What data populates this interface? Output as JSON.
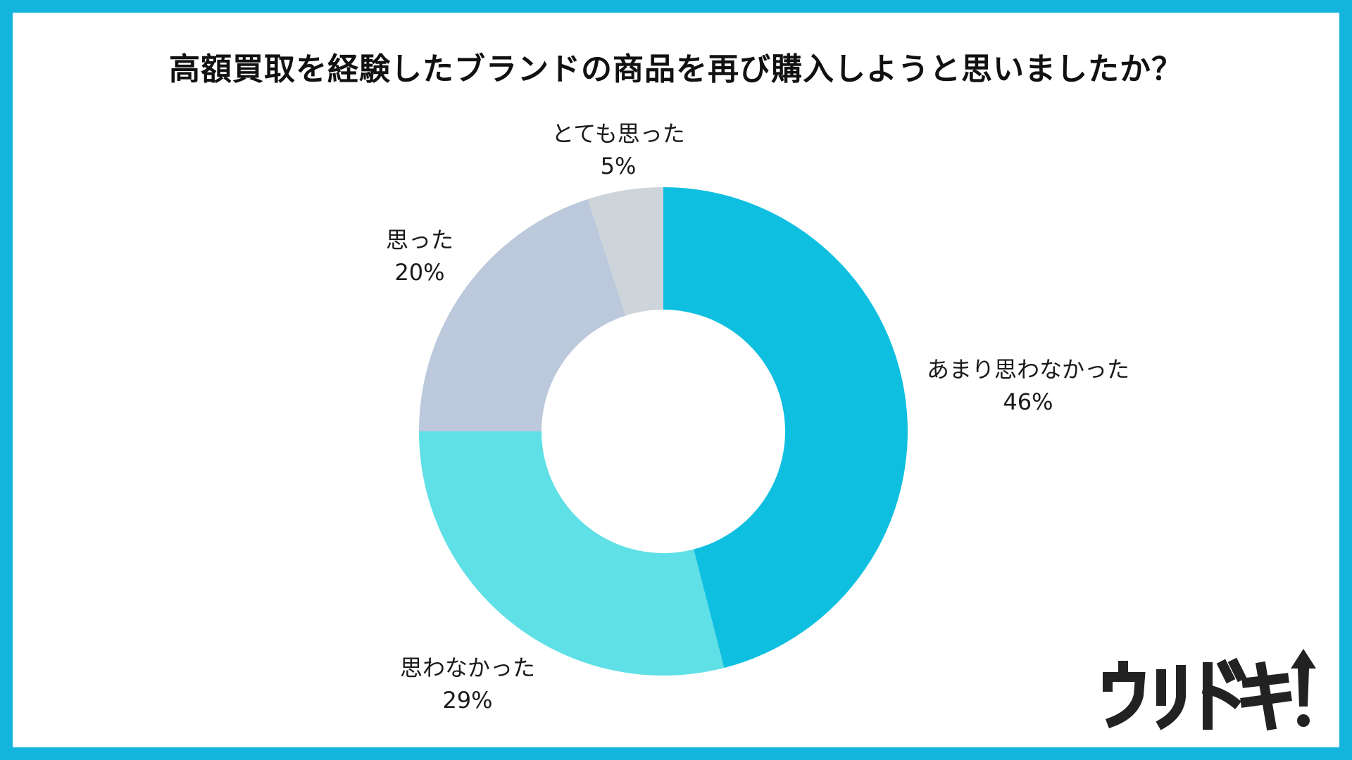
{
  "title": "高額買取を経験したブランドの商品を再び購入しようと思いましたか？",
  "chart_data": {
    "type": "pie",
    "donut": true,
    "title": "高額買取を経験したブランドの商品を再び購入しようと思いましたか？",
    "slices": [
      {
        "label": "あまり思わなかった",
        "value": 46,
        "value_label": "46%",
        "color": "#0fbfe0"
      },
      {
        "label": "思わなかった",
        "value": 29,
        "value_label": "29%",
        "color": "#5fe0e6"
      },
      {
        "label": "思った",
        "value": 20,
        "value_label": "20%",
        "color": "#bcc8dc"
      },
      {
        "label": "とても思った",
        "value": 5,
        "value_label": "5%",
        "color": "#cdd4da"
      }
    ],
    "start": "top",
    "direction": "clockwise"
  },
  "colors": {
    "border": "#14b5dd",
    "logo": "#222222"
  },
  "logo": {
    "text": "ウリドキ",
    "icon": "up-arrow-exclamation-icon"
  }
}
